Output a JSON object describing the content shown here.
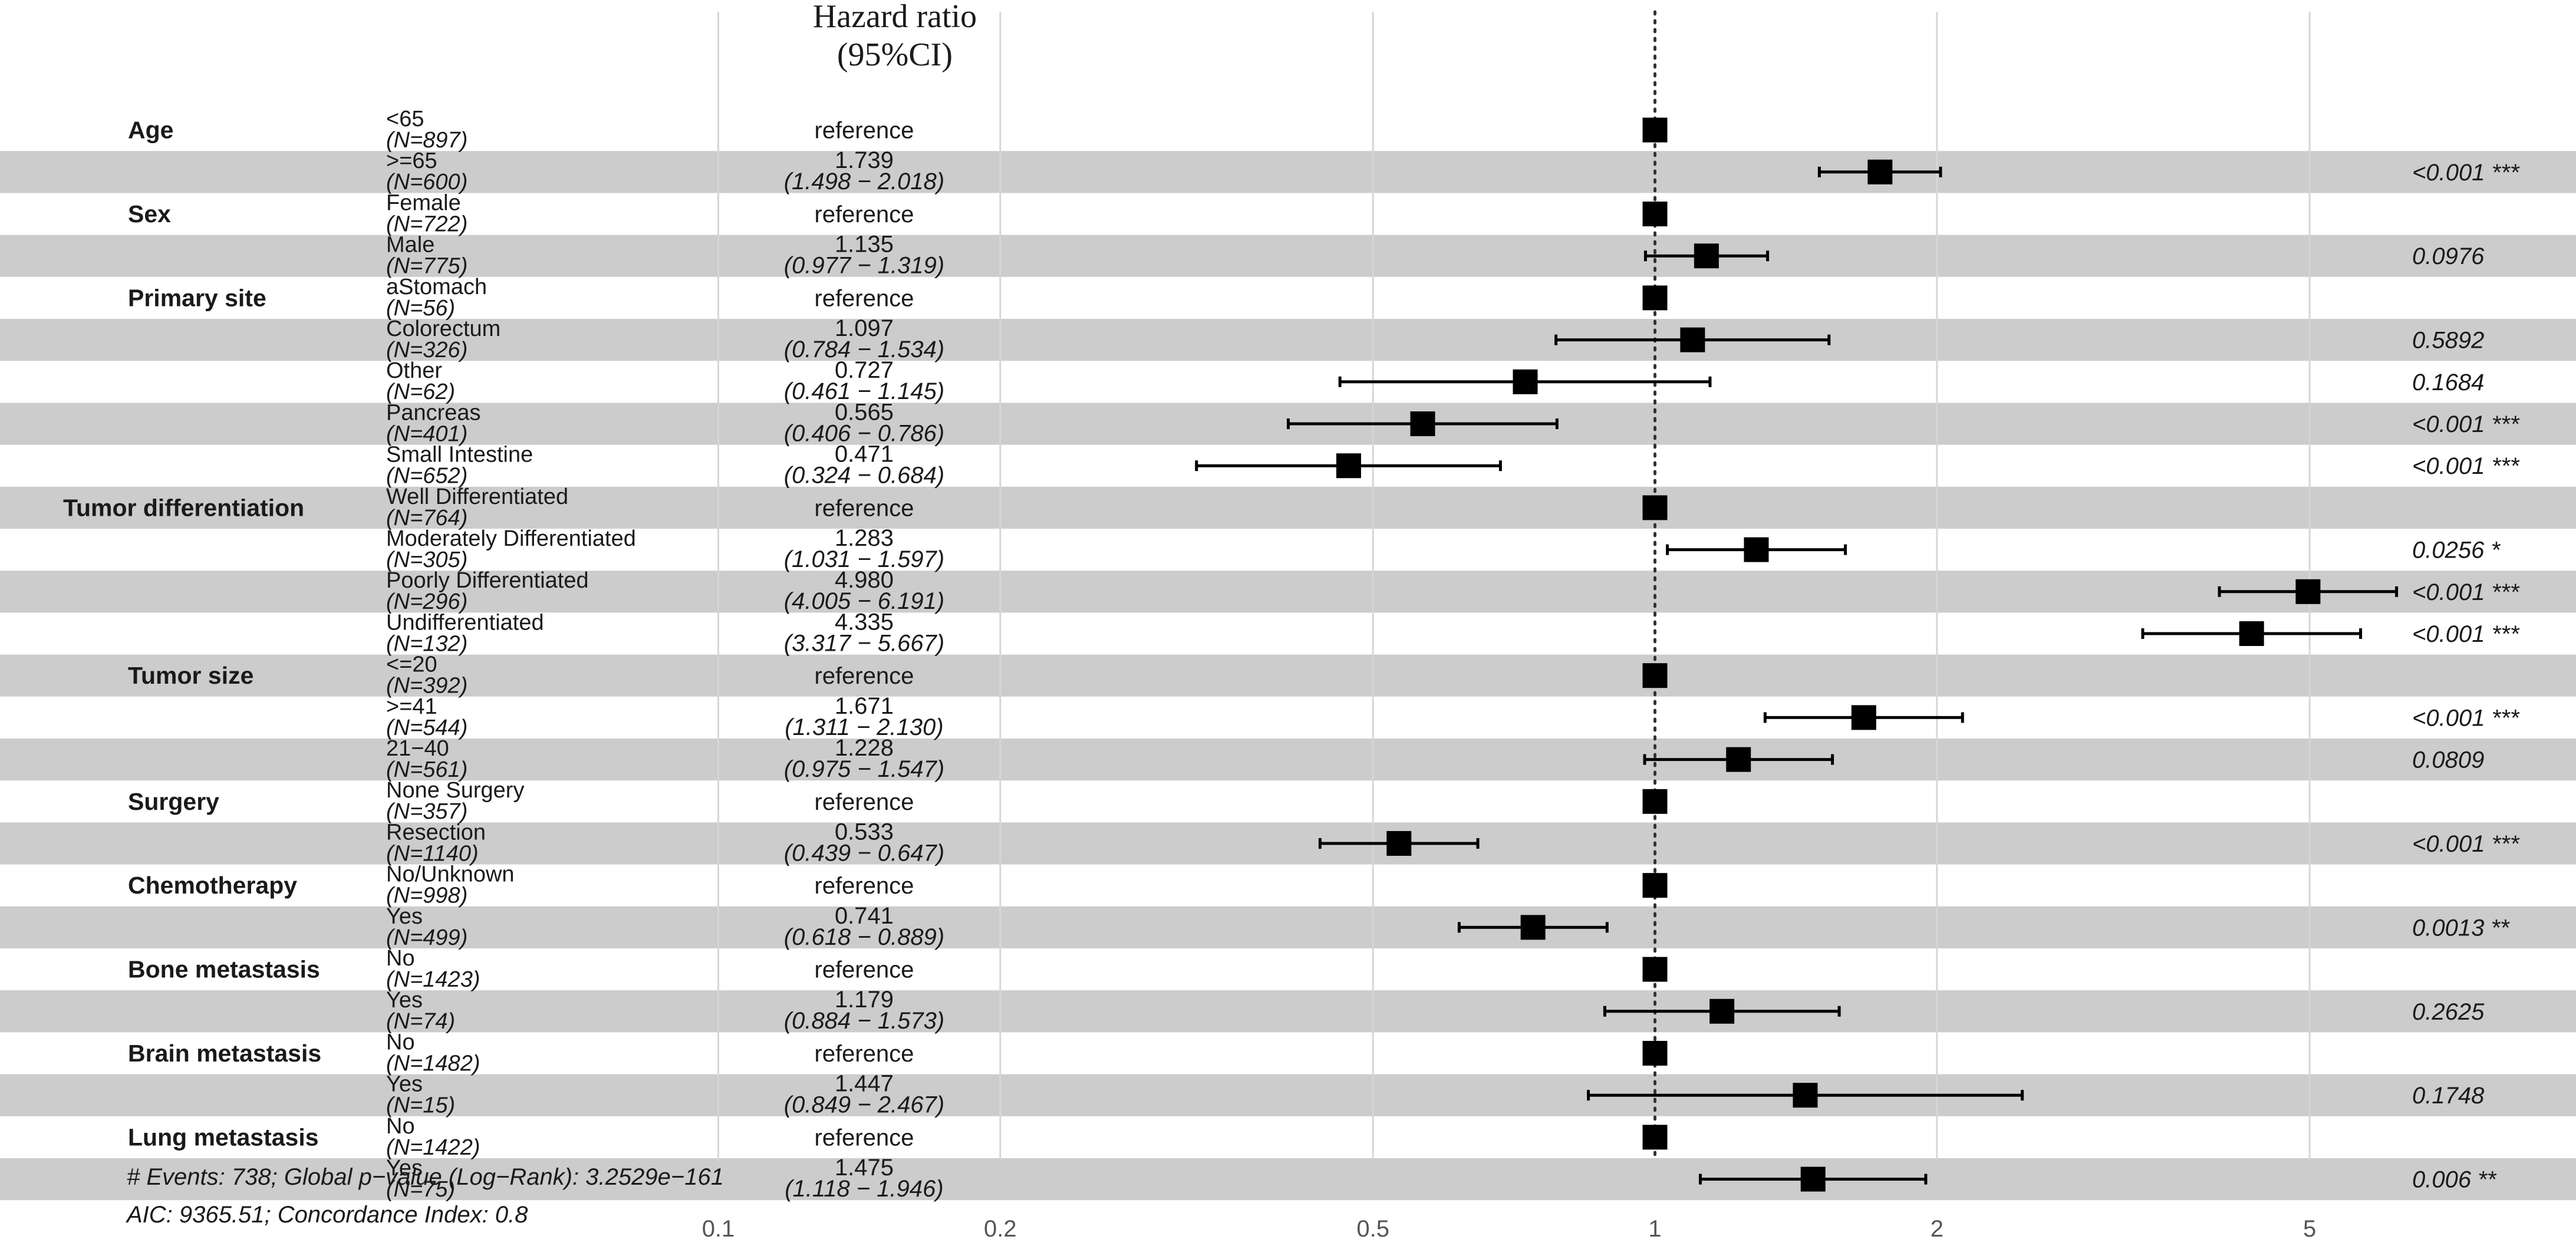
{
  "chart_data": {
    "type": "forest",
    "title_line1": "Hazard ratio",
    "title_line2": "(95%CI)",
    "x_scale": "log",
    "xlim": [
      0.08,
      8.5
    ],
    "x_ticks": [
      0.1,
      0.2,
      0.5,
      1,
      2,
      5
    ],
    "x_tick_labels": [
      "0.1",
      "0.2",
      "0.5",
      "1",
      "2",
      "5"
    ],
    "reference_value": 1,
    "rows": [
      {
        "variable": "Age",
        "level": "<65",
        "n": "(N=897)",
        "hr_text": "reference",
        "ci_text": "",
        "p_text": "",
        "hr": 1
      },
      {
        "variable": "",
        "level": ">=65",
        "n": "(N=600)",
        "hr_text": "1.739",
        "ci_text": "(1.498 − 2.018)",
        "p_text": "<0.001 ***",
        "hr": 1.739,
        "lo": 1.498,
        "hi": 2.018
      },
      {
        "variable": "Sex",
        "level": "Female",
        "n": "(N=722)",
        "hr_text": "reference",
        "ci_text": "",
        "p_text": "",
        "hr": 1
      },
      {
        "variable": "",
        "level": "Male",
        "n": "(N=775)",
        "hr_text": "1.135",
        "ci_text": "(0.977 − 1.319)",
        "p_text": "0.0976",
        "hr": 1.135,
        "lo": 0.977,
        "hi": 1.319
      },
      {
        "variable": "Primary site",
        "level": "aStomach",
        "n": "(N=56)",
        "hr_text": "reference",
        "ci_text": "",
        "p_text": "",
        "hr": 1
      },
      {
        "variable": "",
        "level": "Colorectum",
        "n": "(N=326)",
        "hr_text": "1.097",
        "ci_text": "(0.784 − 1.534)",
        "p_text": "0.5892",
        "hr": 1.097,
        "lo": 0.784,
        "hi": 1.534
      },
      {
        "variable": "",
        "level": "Other",
        "n": "(N=62)",
        "hr_text": "0.727",
        "ci_text": "(0.461 − 1.145)",
        "p_text": "0.1684",
        "hr": 0.727,
        "lo": 0.461,
        "hi": 1.145
      },
      {
        "variable": "",
        "level": "Pancreas",
        "n": "(N=401)",
        "hr_text": "0.565",
        "ci_text": "(0.406 − 0.786)",
        "p_text": "<0.001 ***",
        "hr": 0.565,
        "lo": 0.406,
        "hi": 0.786
      },
      {
        "variable": "",
        "level": "Small Intestine",
        "n": "(N=652)",
        "hr_text": "0.471",
        "ci_text": "(0.324 − 0.684)",
        "p_text": "<0.001 ***",
        "hr": 0.471,
        "lo": 0.324,
        "hi": 0.684
      },
      {
        "variable": "Tumor differentiation",
        "level": "Well Differentiated",
        "n": "(N=764)",
        "hr_text": "reference",
        "ci_text": "",
        "p_text": "",
        "hr": 1
      },
      {
        "variable": "",
        "level": "Moderately Differentiated",
        "n": "(N=305)",
        "hr_text": "1.283",
        "ci_text": "(1.031 − 1.597)",
        "p_text": "0.0256 *",
        "hr": 1.283,
        "lo": 1.031,
        "hi": 1.597
      },
      {
        "variable": "",
        "level": "Poorly Differentiated",
        "n": "(N=296)",
        "hr_text": "4.980",
        "ci_text": "(4.005 − 6.191)",
        "p_text": "<0.001 ***",
        "hr": 4.98,
        "lo": 4.005,
        "hi": 6.191
      },
      {
        "variable": "",
        "level": "Undifferentiated",
        "n": "(N=132)",
        "hr_text": "4.335",
        "ci_text": "(3.317 − 5.667)",
        "p_text": "<0.001 ***",
        "hr": 4.335,
        "lo": 3.317,
        "hi": 5.667
      },
      {
        "variable": "Tumor size",
        "level": "<=20",
        "n": "(N=392)",
        "hr_text": "reference",
        "ci_text": "",
        "p_text": "",
        "hr": 1
      },
      {
        "variable": "",
        "level": ">=41",
        "n": "(N=544)",
        "hr_text": "1.671",
        "ci_text": "(1.311 − 2.130)",
        "p_text": "<0.001 ***",
        "hr": 1.671,
        "lo": 1.311,
        "hi": 2.13
      },
      {
        "variable": "",
        "level": "21−40",
        "n": "(N=561)",
        "hr_text": "1.228",
        "ci_text": "(0.975 − 1.547)",
        "p_text": "0.0809",
        "hr": 1.228,
        "lo": 0.975,
        "hi": 1.547
      },
      {
        "variable": "Surgery",
        "level": "None Surgery",
        "n": "(N=357)",
        "hr_text": "reference",
        "ci_text": "",
        "p_text": "",
        "hr": 1
      },
      {
        "variable": "",
        "level": "Resection",
        "n": "(N=1140)",
        "hr_text": "0.533",
        "ci_text": "(0.439 − 0.647)",
        "p_text": "<0.001 ***",
        "hr": 0.533,
        "lo": 0.439,
        "hi": 0.647
      },
      {
        "variable": "Chemotherapy",
        "level": "No/Unknown",
        "n": "(N=998)",
        "hr_text": "reference",
        "ci_text": "",
        "p_text": "",
        "hr": 1
      },
      {
        "variable": "",
        "level": "Yes",
        "n": "(N=499)",
        "hr_text": "0.741",
        "ci_text": "(0.618 − 0.889)",
        "p_text": "0.0013 **",
        "hr": 0.741,
        "lo": 0.618,
        "hi": 0.889
      },
      {
        "variable": "Bone metastasis",
        "level": "No",
        "n": "(N=1423)",
        "hr_text": "reference",
        "ci_text": "",
        "p_text": "",
        "hr": 1
      },
      {
        "variable": "",
        "level": "Yes",
        "n": "(N=74)",
        "hr_text": "1.179",
        "ci_text": "(0.884 − 1.573)",
        "p_text": "0.2625",
        "hr": 1.179,
        "lo": 0.884,
        "hi": 1.573
      },
      {
        "variable": "Brain metastasis",
        "level": "No",
        "n": "(N=1482)",
        "hr_text": "reference",
        "ci_text": "",
        "p_text": "",
        "hr": 1
      },
      {
        "variable": "",
        "level": "Yes",
        "n": "(N=15)",
        "hr_text": "1.447",
        "ci_text": "(0.849 − 2.467)",
        "p_text": "0.1748",
        "hr": 1.447,
        "lo": 0.849,
        "hi": 2.467
      },
      {
        "variable": "Lung metastasis",
        "level": "No",
        "n": "(N=1422)",
        "hr_text": "reference",
        "ci_text": "",
        "p_text": "",
        "hr": 1
      },
      {
        "variable": "",
        "level": "Yes",
        "n": "(N=75)",
        "hr_text": "1.475",
        "ci_text": "(1.118 − 1.946)",
        "p_text": "0.006 **",
        "hr": 1.475,
        "lo": 1.118,
        "hi": 1.946
      }
    ],
    "footer_line1": "# Events: 738; Global p−value (Log−Rank): 3.2529e−161",
    "footer_line2": "AIC: 9365.51; Concordance Index: 0.8",
    "colors": {
      "stripe": "#cccccc",
      "grid": "#d6d6d6",
      "marker": "#000000",
      "text": "#1a1a1a"
    }
  }
}
